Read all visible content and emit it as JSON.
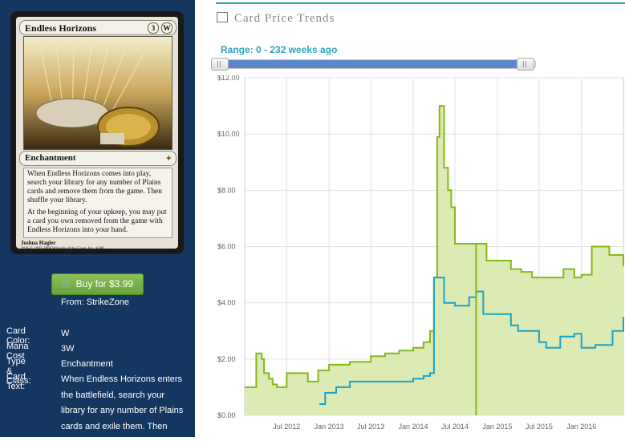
{
  "card": {
    "name": "Endless Horizons",
    "mana_cost_generic": "3",
    "mana_cost_symbol": "W",
    "type_line": "Enchantment",
    "rules_text": [
      "When Endless Horizons comes into play, search your library for any number of Plains cards and remove them from the game. Then shuffle your library.",
      "At the beginning of your upkeep, you may put a card you own removed from the game with Endless Horizons into your hand."
    ],
    "artist": "Joshua Hagler",
    "copyright": "™ & © 1993-2006 Wizards of the Coast, Inc. 4/180"
  },
  "buy": {
    "button_label": "Buy for $3.99",
    "from": "From: StrikeZone"
  },
  "info": [
    {
      "label": "Card Color:",
      "value": "W"
    },
    {
      "label": "Mana Cost",
      "value": "3W"
    },
    {
      "label": "Type & Class:",
      "value": "Enchantment"
    },
    {
      "label": "Card Text:",
      "value": "When Endless Horizons enters the battlefield, search your library for any number of Plains cards and exile them. Then shuffle your library. At the"
    }
  ],
  "header": {
    "title": "Card Price Trends",
    "icon": "calendar-icon"
  },
  "range": {
    "label": "Range: 0 - 232 weeks ago",
    "min_weeks_ago": 0,
    "max_weeks_ago": 232
  },
  "colors": {
    "accent": "#2aa5bf",
    "sidebar_bg": "#143760",
    "buy_green": "#6aa63c",
    "series_paper": "#86b817",
    "series_paper_fill": "#d6e8a6",
    "series_foil": "#1aa3c8",
    "slider_fill": "#5b87c7"
  },
  "chart_data": {
    "type": "line",
    "y_ticks": [
      "$0.00",
      "$2.00",
      "$4.00",
      "$6.00",
      "$8.00",
      "$10.00",
      "$12.00"
    ],
    "x_ticks": [
      "Jul 2012",
      "Jan 2013",
      "Jul 2013",
      "Jan 2014",
      "Jul 2014",
      "Jan 2015",
      "Jul 2015",
      "Jan 2016"
    ],
    "ylim": [
      0,
      12
    ],
    "xlim": [
      "2012-01-01",
      "2016-07-01"
    ],
    "grid": true,
    "series": [
      {
        "values": [
          [
            "2012-01-01",
            1.0
          ],
          [
            "2012-02-20",
            2.2
          ],
          [
            "2012-03-15",
            2.0
          ],
          [
            "2012-03-25",
            1.5
          ],
          [
            "2012-04-15",
            1.3
          ],
          [
            "2012-05-01",
            1.1
          ],
          [
            "2012-05-20",
            1.0
          ],
          [
            "2012-06-15",
            1.0
          ],
          [
            "2012-07-01",
            1.5
          ],
          [
            "2012-09-01",
            1.5
          ],
          [
            "2012-10-01",
            1.2
          ],
          [
            "2012-11-15",
            1.6
          ],
          [
            "2013-01-01",
            1.8
          ],
          [
            "2013-03-01",
            1.8
          ],
          [
            "2013-04-01",
            1.9
          ],
          [
            "2013-05-01",
            1.9
          ],
          [
            "2013-07-01",
            2.1
          ],
          [
            "2013-09-01",
            2.2
          ],
          [
            "2013-11-01",
            2.3
          ],
          [
            "2014-01-01",
            2.4
          ],
          [
            "2014-02-15",
            2.6
          ],
          [
            "2014-03-15",
            3.0
          ],
          [
            "2014-04-01",
            4.9
          ],
          [
            "2014-04-15",
            9.9
          ],
          [
            "2014-04-25",
            11.0
          ],
          [
            "2014-05-15",
            8.8
          ],
          [
            "2014-06-01",
            8.0
          ],
          [
            "2014-06-15",
            7.4
          ],
          [
            "2014-07-01",
            6.1
          ],
          [
            "2014-08-01",
            6.1
          ],
          [
            "2014-10-15",
            6.1
          ],
          [
            "2014-11-15",
            5.5
          ],
          [
            "2015-02-01",
            5.5
          ],
          [
            "2015-03-01",
            5.2
          ],
          [
            "2015-04-15",
            5.1
          ],
          [
            "2015-06-01",
            4.9
          ],
          [
            "2015-09-01",
            4.9
          ],
          [
            "2015-10-15",
            5.2
          ],
          [
            "2015-12-01",
            4.9
          ],
          [
            "2016-01-01",
            5.0
          ],
          [
            "2016-02-15",
            6.0
          ],
          [
            "2016-05-01",
            5.7
          ],
          [
            "2016-07-01",
            5.3
          ]
        ]
      },
      {
        "values": [
          [
            "2012-11-20",
            0.4
          ],
          [
            "2012-12-15",
            0.8
          ],
          [
            "2013-02-01",
            1.0
          ],
          [
            "2013-04-01",
            1.2
          ],
          [
            "2013-07-01",
            1.2
          ],
          [
            "2013-10-01",
            1.2
          ],
          [
            "2014-01-01",
            1.3
          ],
          [
            "2014-02-15",
            1.4
          ],
          [
            "2014-03-15",
            1.5
          ],
          [
            "2014-04-01",
            4.9
          ],
          [
            "2014-05-15",
            4.0
          ],
          [
            "2014-07-01",
            3.9
          ],
          [
            "2014-09-01",
            4.2
          ],
          [
            "2014-10-01",
            4.4
          ],
          [
            "2014-11-01",
            3.6
          ],
          [
            "2015-01-15",
            3.6
          ],
          [
            "2015-03-01",
            3.2
          ],
          [
            "2015-04-01",
            3.0
          ],
          [
            "2015-06-01",
            3.0
          ],
          [
            "2015-07-01",
            2.6
          ],
          [
            "2015-08-01",
            2.4
          ],
          [
            "2015-10-01",
            2.8
          ],
          [
            "2015-12-01",
            2.9
          ],
          [
            "2016-01-01",
            2.4
          ],
          [
            "2016-03-01",
            2.5
          ],
          [
            "2016-05-15",
            3.0
          ],
          [
            "2016-07-01",
            3.5
          ]
        ]
      }
    ]
  }
}
